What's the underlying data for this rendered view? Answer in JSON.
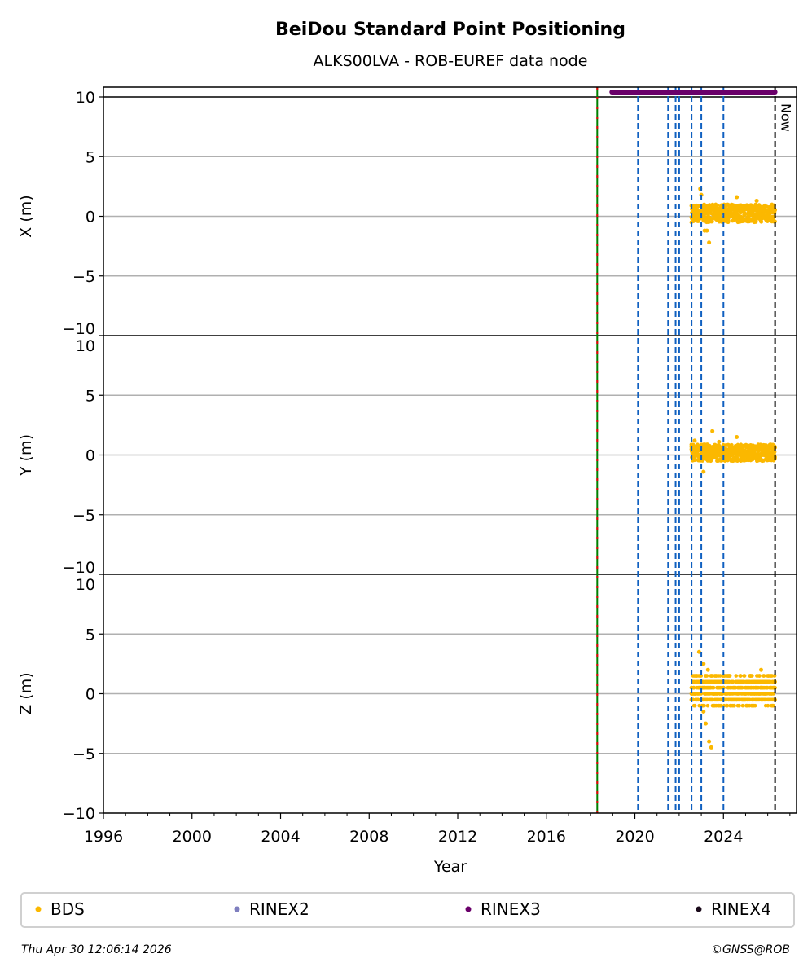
{
  "chart_data": {
    "type": "scatter",
    "title": "BeiDou Standard Point Positioning",
    "subtitle": "ALKS00LVA - ROB-EUREF data node",
    "xlabel": "Year",
    "xlim": [
      1996,
      2027.3
    ],
    "xticks": [
      1996,
      2000,
      2004,
      2008,
      2012,
      2016,
      2020,
      2024
    ],
    "xtick_labels": [
      "1996",
      "2000",
      "2004",
      "2008",
      "2012",
      "2016",
      "2020",
      "2024"
    ],
    "panels": [
      {
        "ylabel": "X (m)",
        "ylim": [
          -10,
          10
        ],
        "yticks": [
          10,
          5,
          0,
          -5,
          -10
        ],
        "ytick_labels": [
          "10",
          "5",
          "0",
          "−5",
          "−10"
        ],
        "dense": {
          "start": 2022.55,
          "end": 2026.33,
          "min": -0.5,
          "max": 1.0
        },
        "outliers": [
          [
            2022.95,
            2.3
          ],
          [
            2023.0,
            1.8
          ],
          [
            2023.15,
            -1.2
          ],
          [
            2023.25,
            -1.2
          ],
          [
            2023.35,
            -2.2
          ],
          [
            2024.6,
            1.6
          ],
          [
            2025.5,
            1.3
          ]
        ]
      },
      {
        "ylabel": "Y (m)",
        "ylim": [
          -10,
          10
        ],
        "yticks": [
          10,
          5,
          0,
          -5,
          -10
        ],
        "ytick_labels": [
          "10",
          "5",
          "0",
          "−5",
          "−10"
        ],
        "dense": {
          "start": 2022.55,
          "end": 2026.33,
          "min": -0.5,
          "max": 0.9
        },
        "outliers": [
          [
            2022.7,
            1.2
          ],
          [
            2023.1,
            -1.4
          ],
          [
            2023.5,
            2.0
          ],
          [
            2023.8,
            1.1
          ],
          [
            2024.6,
            1.5
          ]
        ]
      },
      {
        "ylabel": "Z (m)",
        "ylim": [
          -10,
          10
        ],
        "yticks": [
          10,
          5,
          0,
          -5,
          -10
        ],
        "ytick_labels": [
          "10",
          "5",
          "0",
          "−5",
          "−10"
        ],
        "dense": {
          "start": 2022.55,
          "end": 2026.33,
          "min": -1.0,
          "max": 1.5
        },
        "outliers": [
          [
            2022.9,
            3.5
          ],
          [
            2023.1,
            2.5
          ],
          [
            2023.3,
            2.0
          ],
          [
            2023.1,
            -1.5
          ],
          [
            2023.2,
            -2.5
          ],
          [
            2023.35,
            -4.0
          ],
          [
            2023.45,
            -4.5
          ],
          [
            2025.7,
            2.0
          ]
        ]
      }
    ],
    "rinex3_span": [
      2018.96,
      2026.33
    ],
    "equipment_line": 2018.3,
    "event_lines": [
      2020.14,
      2021.5,
      2021.84,
      2022.0,
      2022.56,
      2023.0,
      2024.0
    ],
    "now": 2026.33,
    "now_label": "Now",
    "legend": [
      {
        "label": "BDS",
        "color": "#fbb800"
      },
      {
        "label": "RINEX2",
        "color": "#7f7fbf"
      },
      {
        "label": "RINEX3",
        "color": "#6a006a"
      },
      {
        "label": "RINEX4",
        "color": "#1a0a1a"
      }
    ],
    "legend_placement": "bottom"
  },
  "footer": {
    "timestamp": "Thu Apr 30 12:06:14 2026",
    "copyright": "©GNSS@ROB"
  }
}
